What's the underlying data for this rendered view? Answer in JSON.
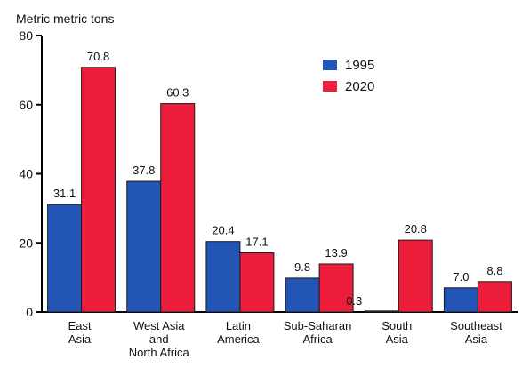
{
  "chart_data": {
    "type": "bar",
    "title": "",
    "ylabel": "Metric metric tons",
    "xlabel": "",
    "ylim": [
      0,
      80
    ],
    "yticks": [
      0,
      20,
      40,
      60,
      80
    ],
    "categories": [
      [
        "East",
        "Asia"
      ],
      [
        "West Asia",
        "and",
        "North Africa"
      ],
      [
        "Latin",
        "America"
      ],
      [
        "Sub-Saharan",
        "Africa"
      ],
      [
        "South",
        "Asia"
      ],
      [
        "Southeast",
        "Asia"
      ]
    ],
    "series": [
      {
        "name": "1995",
        "color": "#2255b5",
        "values": [
          31.1,
          37.8,
          20.4,
          9.8,
          0.3,
          7.0
        ],
        "labels": [
          "31.1",
          "37.8",
          "20.4",
          "9.8",
          "0.3",
          "7.0"
        ]
      },
      {
        "name": "2020",
        "color": "#ee1d3c",
        "values": [
          70.8,
          60.3,
          17.1,
          13.9,
          20.8,
          8.8
        ],
        "labels": [
          "70.8",
          "60.3",
          "17.1",
          "13.9",
          "20.8",
          "8.8"
        ]
      }
    ],
    "legend_position": "top-right",
    "grid": false
  }
}
